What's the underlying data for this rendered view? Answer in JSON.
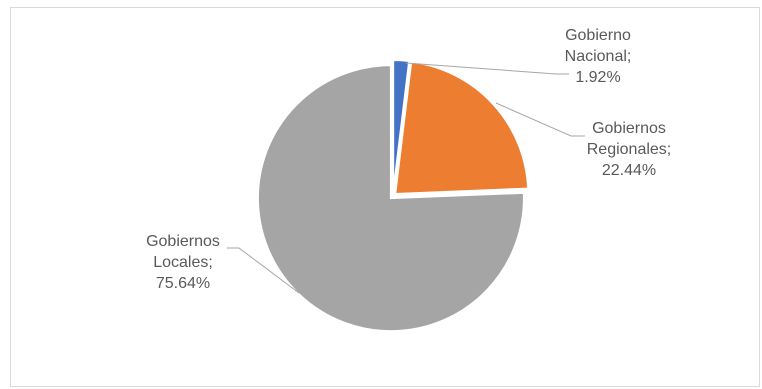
{
  "chart_data": {
    "type": "pie",
    "title": "",
    "slices": [
      {
        "label": "Gobierno Nacional",
        "value": 1.92,
        "color": "#4472c4",
        "label_lines": [
          "Gobierno",
          "Nacional;",
          "1.92%"
        ]
      },
      {
        "label": "Gobiernos Regionales",
        "value": 22.44,
        "color": "#ed7d31",
        "label_lines": [
          "Gobiernos",
          "Regionales;",
          "22.44%"
        ]
      },
      {
        "label": "Gobiernos Locales",
        "value": 75.64,
        "color": "#a5a5a5",
        "label_lines": [
          "Gobiernos",
          "Locales;",
          "75.64%"
        ]
      }
    ],
    "unit": "%",
    "start_angle": "12 o'clock",
    "direction": "clockwise",
    "legend": "none"
  }
}
